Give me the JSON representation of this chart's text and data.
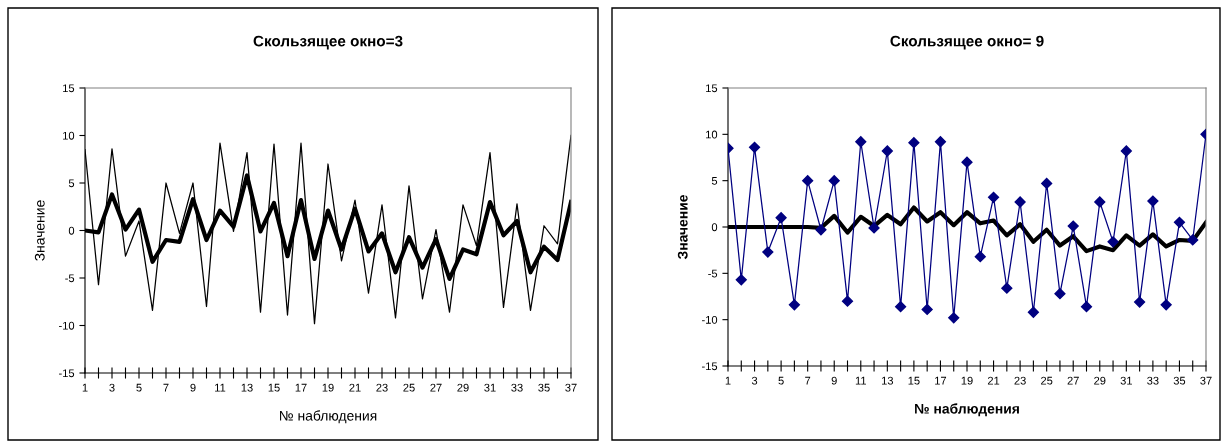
{
  "chart_data": [
    {
      "type": "line",
      "title": "Скользящее окно=3",
      "xlabel": "№ наблюдения",
      "ylabel": "Значение",
      "categories": [
        "1",
        null,
        "3",
        null,
        "5",
        null,
        "7",
        null,
        "9",
        null,
        "11",
        null,
        "13",
        null,
        "15",
        null,
        "17",
        null,
        "19",
        null,
        "21",
        null,
        "23",
        null,
        "25",
        null,
        "27",
        null,
        "29",
        null,
        "31",
        null,
        "33",
        null,
        "35",
        null,
        "37"
      ],
      "ylim": [
        -15,
        15
      ],
      "yticks": [
        -15,
        -10,
        -5,
        0,
        5,
        10,
        15
      ],
      "grid": false,
      "series": [
        {
          "color": "#000000",
          "marker": "none",
          "values": [
            8.5,
            -5.7,
            8.6,
            -2.7,
            1.0,
            -8.4,
            5.0,
            -0.3,
            5.0,
            -8.0,
            9.2,
            -0.1,
            8.2,
            -8.6,
            9.1,
            -8.9,
            9.2,
            -9.8,
            7.0,
            -3.2,
            3.2,
            -6.6,
            2.7,
            -9.2,
            4.7,
            -7.2,
            0.1,
            -8.6,
            2.7,
            -1.6,
            8.2,
            -8.1,
            2.8,
            -8.4,
            0.5,
            -1.4,
            10.0
          ]
        },
        {
          "color": "#000000",
          "marker": "none",
          "values": [
            0.0,
            -0.2,
            3.8,
            0.1,
            2.2,
            -3.3,
            -1.0,
            -1.2,
            3.3,
            -1.0,
            2.1,
            0.4,
            5.8,
            -0.1,
            2.9,
            -2.7,
            3.2,
            -3.0,
            2.1,
            -2.0,
            2.3,
            -2.2,
            -0.3,
            -4.4,
            -0.7,
            -3.9,
            -0.9,
            -5.1,
            -2.0,
            -2.5,
            3.0,
            -0.5,
            1.0,
            -4.4,
            -1.7,
            -3.1,
            3.0
          ]
        }
      ]
    },
    {
      "type": "line",
      "title": "Скользящее окно= 9",
      "xlabel": "№ наблюдения",
      "ylabel": "Значение",
      "categories": [
        "1",
        null,
        "3",
        null,
        "5",
        null,
        "7",
        null,
        "9",
        null,
        "11",
        null,
        "13",
        null,
        "15",
        null,
        "17",
        null,
        "19",
        null,
        "21",
        null,
        "23",
        null,
        "25",
        null,
        "27",
        null,
        "29",
        null,
        "31",
        null,
        "33",
        null,
        "35",
        null,
        "37"
      ],
      "ylim": [
        -15,
        15
      ],
      "yticks": [
        -15,
        -10,
        -5,
        0,
        5,
        10,
        15
      ],
      "grid": false,
      "series": [
        {
          "color": "#000080",
          "marker": "diamond",
          "values": [
            8.5,
            -5.7,
            8.6,
            -2.7,
            1.0,
            -8.4,
            5.0,
            -0.3,
            5.0,
            -8.0,
            9.2,
            -0.1,
            8.2,
            -8.6,
            9.1,
            -8.9,
            9.2,
            -9.8,
            7.0,
            -3.2,
            3.2,
            -6.6,
            2.7,
            -9.2,
            4.7,
            -7.2,
            0.1,
            -8.6,
            2.7,
            -1.6,
            8.2,
            -8.1,
            2.8,
            -8.4,
            0.5,
            -1.4,
            10.0
          ]
        },
        {
          "color": "#000000",
          "marker": "none",
          "values": [
            0.0,
            0.0,
            0.0,
            0.0,
            0.0,
            0.0,
            0.0,
            -0.1,
            1.2,
            -0.6,
            1.1,
            0.1,
            1.3,
            0.3,
            2.1,
            0.6,
            1.6,
            0.2,
            1.6,
            0.4,
            0.7,
            -0.9,
            0.3,
            -1.6,
            -0.3,
            -2.0,
            -1.0,
            -2.6,
            -2.1,
            -2.5,
            -0.9,
            -2.0,
            -0.8,
            -2.1,
            -1.4,
            -1.5,
            0.5
          ]
        }
      ]
    }
  ]
}
